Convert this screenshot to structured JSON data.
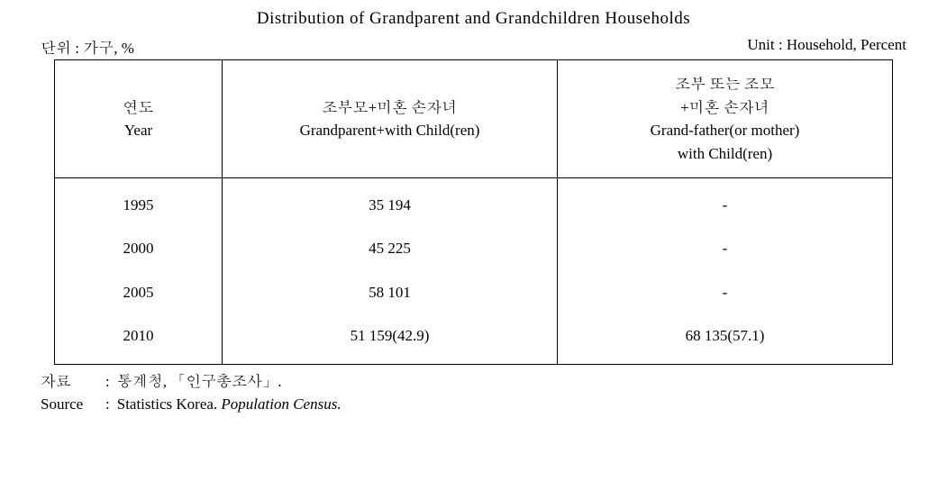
{
  "title": "Distribution of Grandparent and Grandchildren Households",
  "unit_left": "단위 : 가구, %",
  "unit_right": "Unit : Household, Percent",
  "headers": {
    "year_ko": "연도",
    "year_en": "Year",
    "gp_ko": "조부모+미혼 손자녀",
    "gp_en": "Grandparent+with Child(ren)",
    "gfm_ko1": "조부 또는 조모",
    "gfm_ko2": "+미혼 손자녀",
    "gfm_en1": "Grand-father(or mother)",
    "gfm_en2": "with Child(ren)"
  },
  "rows": [
    {
      "year": "1995",
      "gp": "35 194",
      "gfm": "-"
    },
    {
      "year": "2000",
      "gp": "45 225",
      "gfm": "-"
    },
    {
      "year": "2005",
      "gp": "58 101",
      "gfm": "-"
    },
    {
      "year": "2010",
      "gp": "51 159(42.9)",
      "gfm": "68 135(57.1)"
    }
  ],
  "footer": {
    "src_ko_label": "자료",
    "src_ko_text": "통계청, 「인구총조사」.",
    "src_en_label": "Source",
    "src_en_text_plain": "Statistics Korea. ",
    "src_en_text_italic": "Population Census."
  },
  "style": {
    "font_size_title": 19,
    "font_size_body": 17,
    "border_color": "#000000",
    "background": "#ffffff",
    "text_color": "#000000"
  }
}
